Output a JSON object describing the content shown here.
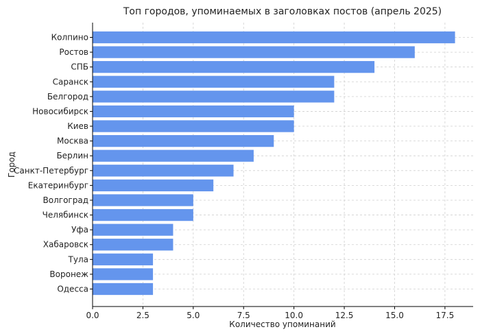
{
  "chart_data": {
    "type": "bar",
    "orientation": "horizontal",
    "title": "Топ городов, упоминаемых в заголовках постов (апрель 2025)",
    "xlabel": "Количество упоминаний",
    "ylabel": "Город",
    "categories": [
      "Колпино",
      "Ростов",
      "СПБ",
      "Саранск",
      "Белгород",
      "Новосибирск",
      "Киев",
      "Москва",
      "Берлин",
      "Санкт-Петербург",
      "Екатеринбург",
      "Волгоград",
      "Челябинск",
      "Уфа",
      "Хабаровск",
      "Тула",
      "Воронеж",
      "Одесса"
    ],
    "values": [
      18,
      16,
      14,
      12,
      12,
      10,
      10,
      9,
      8,
      7,
      6,
      5,
      5,
      4,
      4,
      3,
      3,
      3
    ],
    "xlim": [
      0,
      18.9
    ],
    "xticks": [
      0,
      2.5,
      5,
      7.5,
      10,
      12.5,
      15,
      17.5
    ],
    "xtick_labels": [
      "0.0",
      "2.5",
      "5.0",
      "7.5",
      "10.0",
      "12.5",
      "15.0",
      "17.5"
    ],
    "grid": true,
    "bar_color": "#6495ED"
  }
}
